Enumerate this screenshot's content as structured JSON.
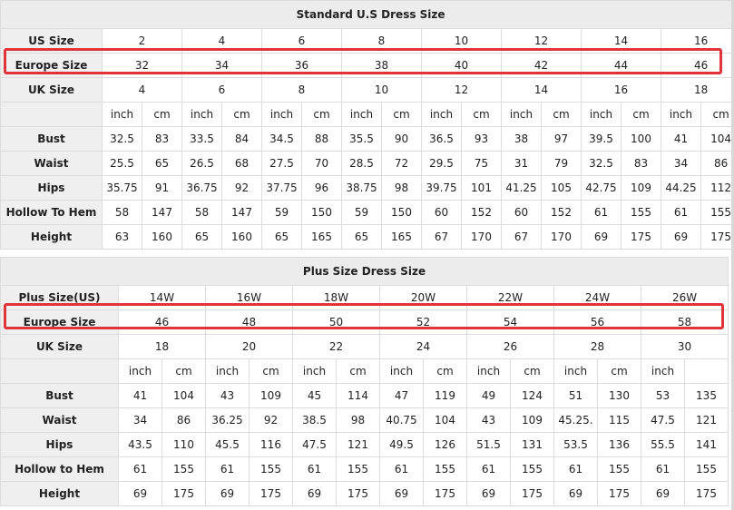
{
  "tables": [
    {
      "title": "Standard U.S Dress Size",
      "size_rows": [
        {
          "label": "US Size",
          "values": [
            2,
            4,
            6,
            8,
            10,
            12,
            14,
            16
          ]
        },
        {
          "label": "Europe Size",
          "values": [
            32,
            34,
            36,
            38,
            40,
            42,
            44,
            46
          ]
        },
        {
          "label": "UK Size",
          "values": [
            4,
            6,
            8,
            10,
            12,
            14,
            16,
            18
          ]
        }
      ],
      "units": [
        "inch",
        "cm",
        "inch",
        "cm",
        "inch",
        "cm",
        "inch",
        "cm",
        "inch",
        "cm",
        "inch",
        "cm",
        "inch",
        "cm",
        "inch",
        "cm"
      ],
      "measure_rows": [
        {
          "label": "Bust",
          "values": [
            32.5,
            83,
            33.5,
            84,
            34.5,
            88,
            35.5,
            90,
            36.5,
            93,
            38,
            97,
            39.5,
            100,
            41,
            104
          ]
        },
        {
          "label": "Waist",
          "values": [
            25.5,
            65,
            26.5,
            68,
            27.5,
            70,
            28.5,
            72,
            29.5,
            75,
            31,
            79,
            32.5,
            83,
            34,
            86
          ]
        },
        {
          "label": "Hips",
          "values": [
            35.75,
            91,
            36.75,
            92,
            37.75,
            96,
            38.75,
            98,
            39.75,
            101,
            41.25,
            105,
            42.75,
            109,
            44.25,
            112
          ]
        },
        {
          "label": "Hollow To Hem",
          "values": [
            58,
            147,
            58,
            147,
            59,
            150,
            59,
            150,
            60,
            152,
            60,
            152,
            61,
            155,
            61,
            155
          ]
        },
        {
          "label": "Height",
          "values": [
            63,
            160,
            65,
            160,
            65,
            165,
            65,
            165,
            67,
            170,
            67,
            170,
            69,
            175,
            69,
            175
          ]
        }
      ]
    },
    {
      "title": "Plus Size Dress Size",
      "size_rows": [
        {
          "label": "Plus Size(US)",
          "values": [
            "14W",
            "16W",
            "18W",
            "20W",
            "22W",
            "24W",
            "26W"
          ]
        },
        {
          "label": "Europe Size",
          "values": [
            46,
            48,
            50,
            52,
            54,
            56,
            58
          ]
        },
        {
          "label": "UK Size",
          "values": [
            18,
            20,
            22,
            24,
            26,
            28,
            30
          ]
        }
      ],
      "units": [
        "inch",
        "cm",
        "inch",
        "cm",
        "inch",
        "cm",
        "inch",
        "cm",
        "inch",
        "cm",
        "inch",
        "cm",
        "inch",
        null
      ],
      "measure_rows": [
        {
          "label": "Bust",
          "values": [
            41,
            104,
            43,
            109,
            45,
            114,
            47,
            119,
            49,
            124,
            51,
            130,
            53,
            135
          ]
        },
        {
          "label": "Waist",
          "values": [
            34,
            86,
            36.25,
            92,
            38.5,
            98,
            40.75,
            104,
            43,
            109,
            "45.25.",
            115,
            47.5,
            121
          ]
        },
        {
          "label": "Hips",
          "values": [
            43.5,
            110,
            45.5,
            116,
            47.5,
            121,
            49.5,
            126,
            51.5,
            131,
            53.5,
            136,
            55.5,
            141
          ]
        },
        {
          "label": "Hollow to Hem",
          "values": [
            61,
            155,
            61,
            155,
            61,
            155,
            61,
            155,
            61,
            155,
            61,
            155,
            61,
            155
          ]
        },
        {
          "label": "Height",
          "values": [
            69,
            175,
            69,
            175,
            69,
            175,
            69,
            175,
            69,
            175,
            69,
            175,
            69,
            175
          ]
        }
      ]
    }
  ]
}
